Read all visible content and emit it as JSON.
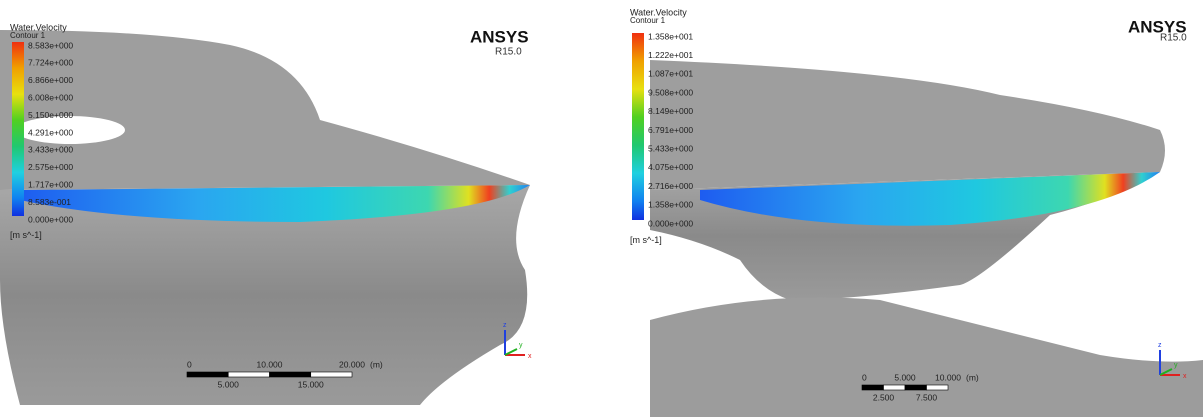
{
  "panels": [
    {
      "legend": {
        "title": "Water.Velocity",
        "subtitle": "Contour 1",
        "labels": [
          "8.583e+000",
          "7.724e+000",
          "6.866e+000",
          "6.008e+000",
          "5.150e+000",
          "4.291e+000",
          "3.433e+000",
          "2.575e+000",
          "1.717e+000",
          "8.583e-001",
          "0.000e+000"
        ],
        "unit": "[m s^-1]"
      },
      "brand": "ANSYS",
      "version": "R15.0",
      "scale": {
        "top": [
          "0",
          "10.000",
          "20.000"
        ],
        "unit": "(m)",
        "bottom": [
          "5.000",
          "15.000"
        ]
      },
      "axes": {
        "x": "x",
        "y": "y",
        "z": "z"
      }
    },
    {
      "legend": {
        "title": "Water.Velocity",
        "subtitle": "Contour 1",
        "labels": [
          "1.358e+001",
          "1.222e+001",
          "1.087e+001",
          "9.508e+000",
          "8.149e+000",
          "6.791e+000",
          "5.433e+000",
          "4.075e+000",
          "2.716e+000",
          "1.358e+000",
          "0.000e+000"
        ],
        "unit": "[m s^-1]"
      },
      "brand": "ANSYS",
      "version": "R15.0",
      "scale": {
        "top": [
          "0",
          "5.000",
          "10.000"
        ],
        "unit": "(m)",
        "bottom": [
          "2.500",
          "7.500"
        ]
      },
      "axes": {
        "x": "x",
        "y": "y",
        "z": "z"
      }
    }
  ]
}
